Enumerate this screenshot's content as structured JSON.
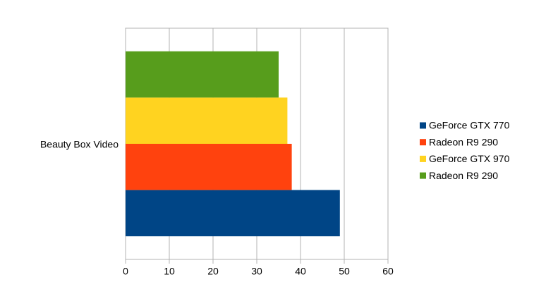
{
  "chart_data": {
    "type": "bar",
    "orientation": "horizontal",
    "categories": [
      "Beauty Box Video"
    ],
    "series": [
      {
        "name": "GeForce GTX 770",
        "color": "#004586",
        "values": [
          49
        ]
      },
      {
        "name": "Radeon R9 290",
        "color": "#ff420e",
        "values": [
          38
        ]
      },
      {
        "name": "GeForce GTX 970",
        "color": "#ffd320",
        "values": [
          37
        ]
      },
      {
        "name": "Radeon R9 290",
        "color": "#579d1c",
        "values": [
          35
        ]
      }
    ],
    "xlim": [
      0,
      60
    ],
    "xticks": [
      0,
      10,
      20,
      30,
      40,
      50,
      60
    ],
    "grid": true,
    "legend": "right"
  }
}
